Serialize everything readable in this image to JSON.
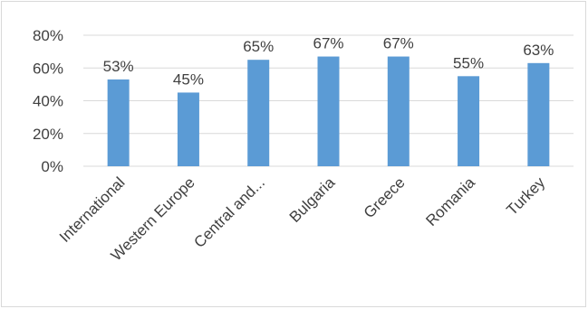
{
  "chart_data": {
    "type": "bar",
    "title": "",
    "xlabel": "",
    "ylabel": "",
    "categories": [
      "International",
      "Western Europe",
      "Central and...",
      "Bulgaria",
      "Greece",
      "Romania",
      "Turkey"
    ],
    "values": [
      53,
      45,
      65,
      67,
      67,
      55,
      63
    ],
    "data_labels": [
      "53%",
      "45%",
      "65%",
      "67%",
      "67%",
      "55%",
      "63%"
    ],
    "y_ticks": [
      "0%",
      "20%",
      "40%",
      "60%",
      "80%"
    ],
    "y_tick_values": [
      0,
      20,
      40,
      60,
      80
    ],
    "ylim": [
      0,
      80
    ],
    "grid": true,
    "legend": "none",
    "colors": {
      "bar": "#5b9bd5",
      "grid": "#d9d9d9",
      "text": "#404040",
      "border": "#d9d9d9"
    }
  }
}
